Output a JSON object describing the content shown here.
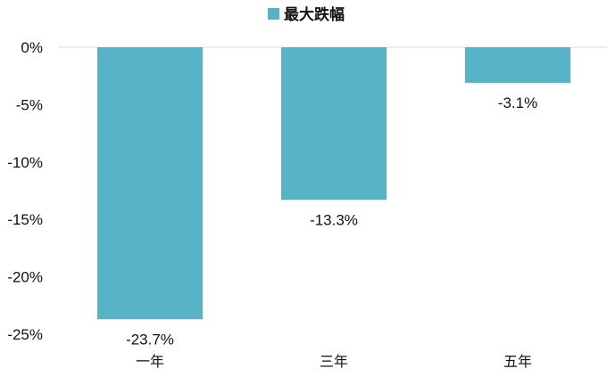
{
  "chart_data": {
    "type": "bar",
    "categories": [
      "一年",
      "三年",
      "五年"
    ],
    "series": [
      {
        "name": "最大跌幅",
        "values": [
          -23.7,
          -13.3,
          -3.1
        ]
      }
    ],
    "data_labels": [
      "-23.7%",
      "-13.3%",
      "-3.1%"
    ],
    "y_ticks": [
      0,
      -5,
      -10,
      -15,
      -20,
      -25
    ],
    "y_tick_labels": [
      "0%",
      "-5%",
      "-10%",
      "-15%",
      "-20%",
      "-25%"
    ],
    "ylim": [
      -25,
      0
    ],
    "legend_position": "top-center",
    "grid": false,
    "colors": {
      "bar": "#56b4c6",
      "axis": "#dddddd"
    }
  }
}
